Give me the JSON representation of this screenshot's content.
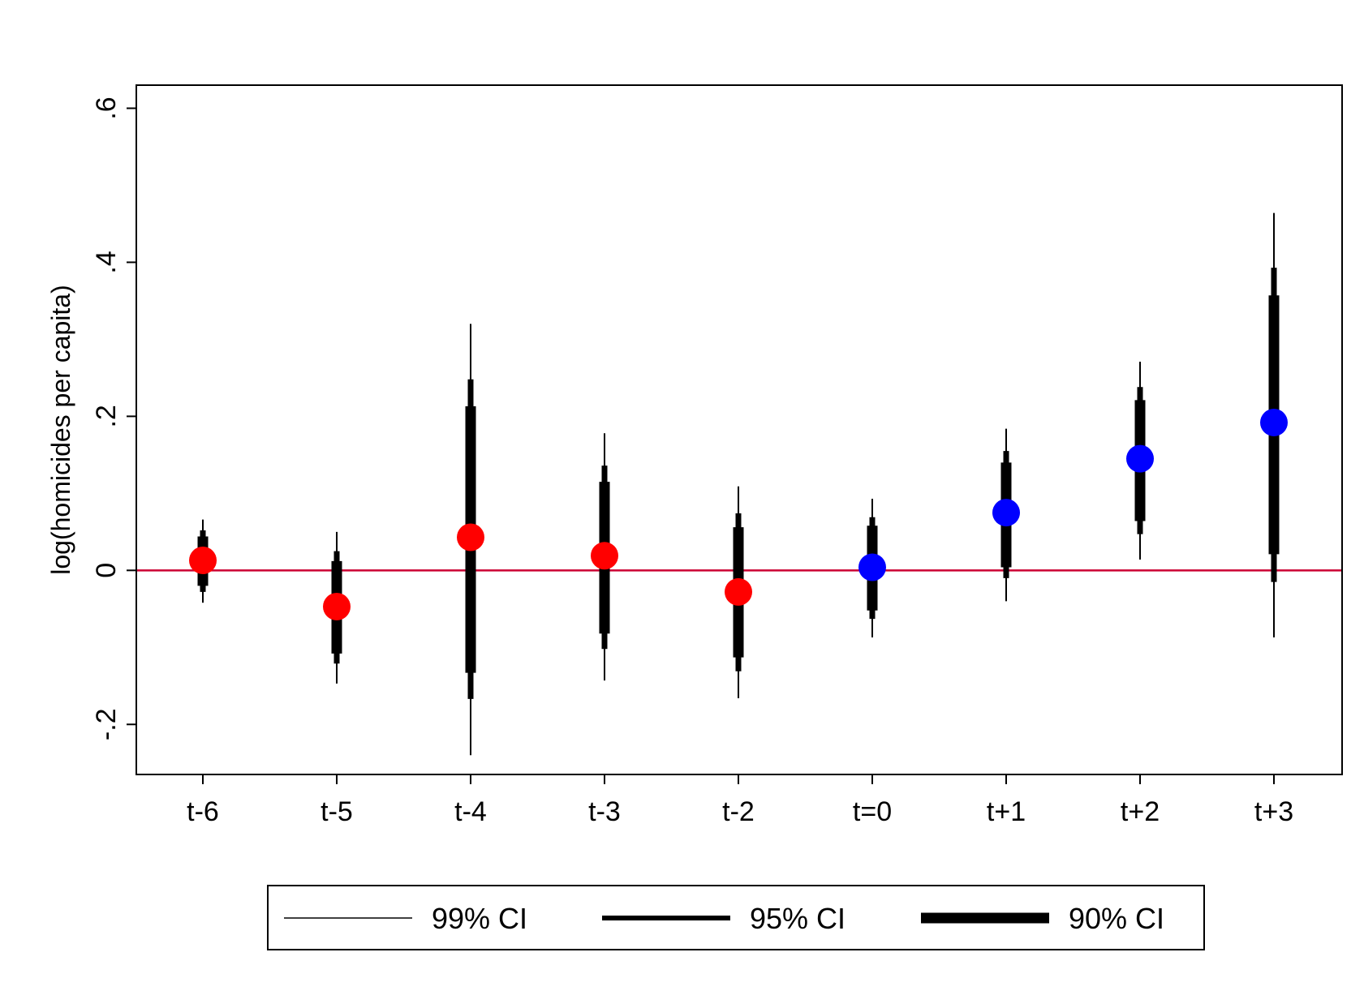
{
  "chart_data": {
    "type": "scatter",
    "title": "",
    "xlabel": "",
    "ylabel": "log(homicides per capita)",
    "ylim": [
      -0.265,
      0.63
    ],
    "yticks": [
      -0.2,
      0,
      0.2,
      0.4,
      0.6
    ],
    "ytick_labels": [
      "-.2",
      "0",
      ".2",
      ".4",
      ".6"
    ],
    "categories": [
      "t-6",
      "t-5",
      "t-4",
      "t-3",
      "t-2",
      "t=0",
      "t+1",
      "t+2",
      "t+3"
    ],
    "estimates": [
      0.013,
      -0.047,
      0.043,
      0.019,
      -0.028,
      0.004,
      0.075,
      0.145,
      0.192
    ],
    "ci99": [
      [
        -0.042,
        0.066
      ],
      [
        -0.147,
        0.05
      ],
      [
        -0.24,
        0.32
      ],
      [
        -0.143,
        0.178
      ],
      [
        -0.166,
        0.109
      ],
      [
        -0.087,
        0.093
      ],
      [
        -0.04,
        0.184
      ],
      [
        0.014,
        0.271
      ],
      [
        -0.087,
        0.464
      ]
    ],
    "ci95": [
      [
        -0.028,
        0.052
      ],
      [
        -0.121,
        0.025
      ],
      [
        -0.167,
        0.248
      ],
      [
        -0.102,
        0.136
      ],
      [
        -0.131,
        0.074
      ],
      [
        -0.063,
        0.069
      ],
      [
        -0.01,
        0.155
      ],
      [
        0.047,
        0.238
      ],
      [
        -0.015,
        0.393
      ]
    ],
    "ci90": [
      [
        -0.02,
        0.044
      ],
      [
        -0.108,
        0.012
      ],
      [
        -0.133,
        0.213
      ],
      [
        -0.082,
        0.115
      ],
      [
        -0.113,
        0.056
      ],
      [
        -0.052,
        0.058
      ],
      [
        0.004,
        0.14
      ],
      [
        0.064,
        0.221
      ],
      [
        0.021,
        0.357
      ]
    ],
    "point_colors": [
      "#ff0000",
      "#ff0000",
      "#ff0000",
      "#ff0000",
      "#ff0000",
      "#0000ff",
      "#0000ff",
      "#0000ff",
      "#0000ff"
    ],
    "reference_line": {
      "y": 0,
      "color": "#cc0033"
    },
    "legend": {
      "position": "bottom",
      "items": [
        {
          "label": "99% CI"
        },
        {
          "label": "95% CI"
        },
        {
          "label": "90% CI"
        }
      ]
    },
    "grid": false
  }
}
